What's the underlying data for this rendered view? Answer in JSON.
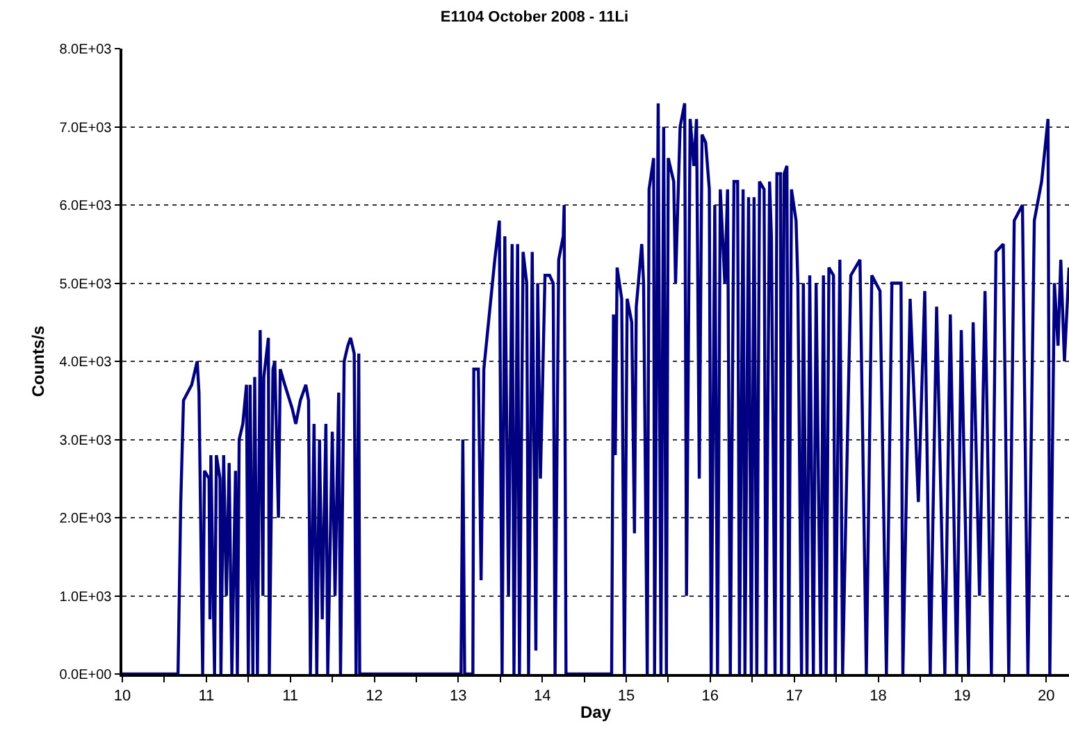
{
  "chart_data": {
    "type": "line",
    "title": "E1104 October 2008 - 11Li",
    "xlabel": "Day",
    "ylabel": "Counts/s",
    "xlim": [
      9.6,
      19.97
    ],
    "ylim": [
      0,
      8000
    ],
    "grid": "y",
    "marker": "none",
    "line_style": "solid",
    "xticks": [
      {
        "value": 9.6,
        "label": "10"
      },
      {
        "value": 10.06,
        "label": null
      },
      {
        "value": 10.52,
        "label": "11"
      },
      {
        "value": 10.98,
        "label": null
      },
      {
        "value": 11.44,
        "label": "11"
      },
      {
        "value": 11.9,
        "label": null
      },
      {
        "value": 12.36,
        "label": "12"
      },
      {
        "value": 12.82,
        "label": null
      },
      {
        "value": 13.28,
        "label": "13"
      },
      {
        "value": 13.74,
        "label": null
      },
      {
        "value": 14.2,
        "label": "14"
      },
      {
        "value": 14.66,
        "label": null
      },
      {
        "value": 15.12,
        "label": "15"
      },
      {
        "value": 15.58,
        "label": null
      },
      {
        "value": 16.04,
        "label": "16"
      },
      {
        "value": 16.5,
        "label": null
      },
      {
        "value": 16.96,
        "label": "17"
      },
      {
        "value": 17.42,
        "label": null
      },
      {
        "value": 17.88,
        "label": "18"
      },
      {
        "value": 18.34,
        "label": null
      },
      {
        "value": 18.8,
        "label": "19"
      },
      {
        "value": 19.26,
        "label": null
      },
      {
        "value": 19.72,
        "label": "20"
      }
    ],
    "yticks": [
      {
        "value": 0,
        "label": "0.0E+00"
      },
      {
        "value": 1000,
        "label": "1.0E+03"
      },
      {
        "value": 2000,
        "label": "2.0E+03"
      },
      {
        "value": 3000,
        "label": "3.0E+03"
      },
      {
        "value": 4000,
        "label": "4.0E+03"
      },
      {
        "value": 5000,
        "label": "5.0E+03"
      },
      {
        "value": 6000,
        "label": "6.0E+03"
      },
      {
        "value": 7000,
        "label": "7.0E+03"
      },
      {
        "value": 8000,
        "label": "8.0E+03"
      }
    ],
    "series": [
      {
        "color": "#000080",
        "x": [
          9.6,
          10.21,
          10.24,
          10.27,
          10.36,
          10.42,
          10.44,
          10.45,
          10.48,
          10.5,
          10.55,
          10.56,
          10.57,
          10.61,
          10.63,
          10.67,
          10.68,
          10.71,
          10.74,
          10.77,
          10.8,
          10.84,
          10.86,
          10.88,
          10.92,
          10.96,
          10.98,
          11.0,
          11.03,
          11.05,
          11.08,
          11.11,
          11.14,
          11.15,
          11.2,
          11.21,
          11.25,
          11.27,
          11.31,
          11.33,
          11.38,
          11.46,
          11.5,
          11.55,
          11.61,
          11.64,
          11.66,
          11.7,
          11.73,
          11.76,
          11.79,
          11.83,
          11.85,
          11.9,
          11.93,
          11.97,
          11.99,
          12.03,
          12.07,
          12.1,
          12.14,
          12.16,
          12.19,
          12.2,
          13.31,
          13.33,
          13.35,
          13.44,
          13.45,
          13.5,
          13.53,
          13.56,
          13.62,
          13.68,
          13.73,
          13.76,
          13.79,
          13.83,
          13.87,
          13.89,
          13.93,
          13.95,
          13.99,
          14.03,
          14.05,
          14.09,
          14.13,
          14.15,
          14.18,
          14.23,
          14.28,
          14.32,
          14.34,
          14.38,
          14.43,
          14.44,
          14.46,
          14.96,
          14.98,
          15.0,
          15.02,
          15.07,
          15.1,
          15.13,
          15.18,
          15.21,
          15.23,
          15.29,
          15.31,
          15.35,
          15.37,
          15.42,
          15.43,
          15.47,
          15.5,
          15.53,
          15.56,
          15.58,
          15.64,
          15.66,
          15.71,
          15.76,
          15.78,
          15.82,
          15.86,
          15.89,
          15.92,
          15.95,
          15.99,
          16.03,
          16.05,
          16.09,
          16.12,
          16.15,
          16.2,
          16.23,
          16.26,
          16.3,
          16.34,
          16.36,
          16.4,
          16.42,
          16.46,
          16.49,
          16.52,
          16.55,
          16.58,
          16.63,
          16.65,
          16.69,
          16.71,
          16.75,
          16.77,
          16.81,
          16.82,
          16.85,
          16.88,
          16.9,
          16.93,
          16.98,
          17.0,
          17.04,
          17.06,
          17.1,
          17.13,
          17.17,
          17.2,
          17.25,
          17.28,
          17.31,
          17.34,
          17.39,
          17.41,
          17.46,
          17.49,
          17.58,
          17.68,
          17.75,
          17.81,
          17.9,
          17.97,
          18.03,
          18.13,
          18.15,
          18.23,
          18.32,
          18.39,
          18.45,
          18.52,
          18.61,
          18.67,
          18.74,
          18.79,
          18.87,
          18.92,
          18.99,
          19.05,
          19.12,
          19.17,
          19.25,
          19.31,
          19.37,
          19.46,
          19.52,
          19.59,
          19.67,
          19.74,
          19.76,
          19.81,
          19.85,
          19.88,
          19.92,
          19.97
        ],
        "values": [
          0,
          0,
          2200,
          3500,
          3700,
          4000,
          3600,
          2700,
          0,
          2600,
          2500,
          700,
          2800,
          0,
          2800,
          2500,
          0,
          2800,
          1000,
          2700,
          0,
          2600,
          0,
          3000,
          3200,
          3700,
          0,
          3700,
          0,
          3800,
          0,
          4400,
          1000,
          3800,
          4300,
          0,
          3900,
          4000,
          2000,
          3900,
          3700,
          3400,
          3200,
          3500,
          3700,
          3500,
          0,
          3200,
          0,
          3000,
          700,
          3200,
          0,
          3100,
          1000,
          3600,
          0,
          4000,
          4200,
          4300,
          4100,
          0,
          4100,
          0,
          0,
          3000,
          0,
          0,
          3900,
          3900,
          1200,
          3900,
          4600,
          5300,
          5800,
          0,
          5600,
          1000,
          5500,
          0,
          5500,
          0,
          5400,
          5000,
          0,
          5400,
          300,
          5000,
          2500,
          5100,
          5100,
          5000,
          0,
          5300,
          5600,
          6000,
          0,
          0,
          4600,
          2800,
          5200,
          4800,
          0,
          4800,
          4500,
          1800,
          4700,
          5500,
          5000,
          0,
          6200,
          6600,
          0,
          7300,
          0,
          7000,
          0,
          6600,
          6300,
          5000,
          7000,
          7300,
          1000,
          7100,
          6500,
          7100,
          2500,
          6900,
          6800,
          6200,
          0,
          6000,
          0,
          6200,
          5000,
          6200,
          0,
          6300,
          6300,
          0,
          6200,
          0,
          6100,
          0,
          6100,
          0,
          6300,
          6200,
          0,
          6300,
          5600,
          0,
          6400,
          6400,
          0,
          6400,
          6500,
          0,
          6200,
          5800,
          5000,
          0,
          5000,
          0,
          5100,
          0,
          5000,
          0,
          5100,
          0,
          5200,
          5100,
          0,
          5300,
          0,
          5100,
          5300,
          0,
          5100,
          4900,
          0,
          5000,
          5000,
          0,
          4800,
          2200,
          4900,
          0,
          4700,
          0,
          4600,
          0,
          4400,
          0,
          4500,
          1000,
          4900,
          0,
          5400,
          5500,
          0,
          5800,
          6000,
          0,
          5800,
          6300,
          7100,
          0,
          5000,
          4200,
          5300,
          4000,
          5200
        ]
      }
    ]
  }
}
